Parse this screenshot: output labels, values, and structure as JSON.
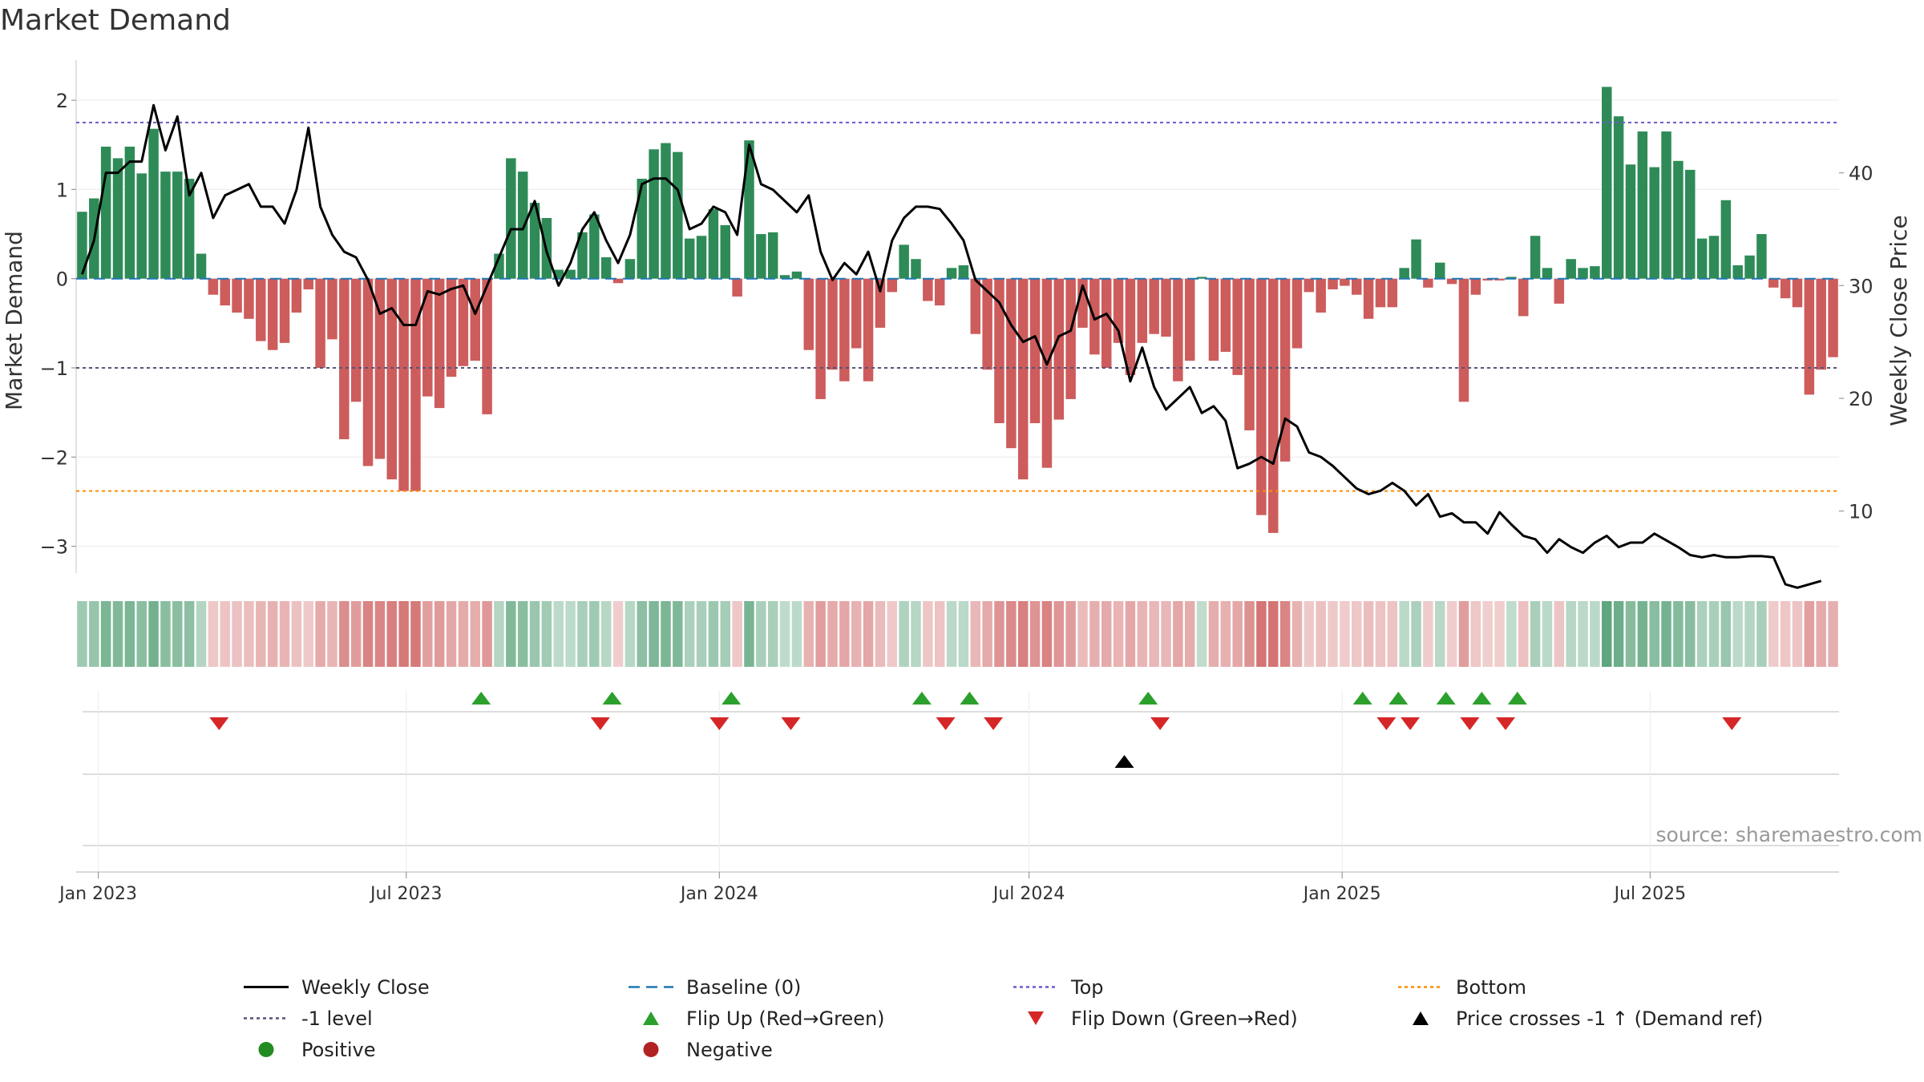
{
  "chart_data": {
    "type": "bar",
    "title": "Market Demand",
    "ylabel": "Market Demand",
    "y2label": "Weekly Close Price",
    "ylim": [
      -3.3,
      2.45
    ],
    "y2lim": [
      4.5,
      50
    ],
    "yticks": [
      2,
      1,
      0,
      -1,
      -2,
      -3
    ],
    "ytick_labels": [
      "2",
      "1",
      "0",
      "−1",
      "−2",
      "−3"
    ],
    "y2ticks": [
      40,
      30,
      20,
      10
    ],
    "y2tick_labels": [
      "40",
      "30",
      "20",
      "10"
    ],
    "x_start": "2022-12-19",
    "x_end": "2025-10-20",
    "xticks": [
      "2023-01-01",
      "2023-07-01",
      "2024-01-01",
      "2024-07-01",
      "2025-01-01",
      "2025-07-01"
    ],
    "xtick_labels": [
      "Jan 2023",
      "Jul 2023",
      "Jan 2024",
      "Jul 2024",
      "Jan 2025",
      "Jul 2025"
    ],
    "reference_lines": {
      "top": 1.75,
      "minus_one": -1,
      "bottom": -2.38,
      "baseline": 0
    },
    "colors": {
      "positive_bar": "#2e8b57",
      "negative_bar": "#cd5c5c",
      "price_line": "#000000",
      "baseline": "#1f77b4",
      "top": "#6a5acd",
      "minus_one": "#555577",
      "bottom": "#ff8c00",
      "flip_up": "#2ca02c",
      "flip_down": "#d62728",
      "cross": "#000000",
      "positive_dot": "#228b22",
      "negative_dot": "#b22222"
    },
    "series": [
      {
        "name": "Market Demand",
        "type": "bar",
        "values": [
          0.75,
          0.9,
          1.48,
          1.35,
          1.48,
          1.18,
          1.68,
          1.2,
          1.2,
          1.12,
          0.28,
          -0.18,
          -0.3,
          -0.38,
          -0.45,
          -0.7,
          -0.8,
          -0.72,
          -0.38,
          -0.12,
          -1.0,
          -0.68,
          -1.8,
          -1.38,
          -2.1,
          -2.02,
          -2.25,
          -2.38,
          -2.38,
          -1.32,
          -1.45,
          -1.1,
          -0.98,
          -0.92,
          -1.52,
          0.28,
          1.35,
          1.2,
          0.85,
          0.68,
          0.1,
          0.1,
          0.52,
          0.72,
          0.24,
          -0.05,
          0.22,
          1.12,
          1.45,
          1.52,
          1.42,
          0.45,
          0.48,
          0.78,
          0.6,
          -0.2,
          1.55,
          0.5,
          0.52,
          0.04,
          0.08,
          -0.8,
          -1.35,
          -1.02,
          -1.15,
          -0.78,
          -1.15,
          -0.55,
          -0.15,
          0.38,
          0.22,
          -0.25,
          -0.3,
          0.12,
          0.15,
          -0.62,
          -1.02,
          -1.62,
          -1.9,
          -2.25,
          -1.62,
          -2.12,
          -1.58,
          -1.35,
          -0.55,
          -0.85,
          -1.0,
          -0.72,
          -1.08,
          -0.72,
          -0.62,
          -0.65,
          -1.15,
          -0.92,
          0.02,
          -0.92,
          -0.82,
          -1.08,
          -1.7,
          -2.65,
          -2.85,
          -2.05,
          -0.78,
          -0.15,
          -0.38,
          -0.12,
          -0.08,
          -0.18,
          -0.45,
          -0.32,
          -0.32,
          0.12,
          0.44,
          -0.1,
          0.18,
          -0.06,
          -1.38,
          -0.18,
          -0.02,
          -0.02,
          0.02,
          -0.42,
          0.48,
          0.12,
          -0.28,
          0.22,
          0.12,
          0.14,
          2.15,
          1.82,
          1.28,
          1.65,
          1.25,
          1.65,
          1.32,
          1.22,
          0.45,
          0.48,
          0.88,
          0.15,
          0.26,
          0.5,
          -0.1,
          -0.22,
          -0.32,
          -1.3,
          -1.02,
          -0.88
        ]
      },
      {
        "name": "Weekly Close",
        "type": "line",
        "values": [
          31,
          34,
          40,
          40,
          41,
          41,
          46,
          42,
          45,
          38,
          40,
          36,
          38,
          38.5,
          39,
          37,
          37,
          35.5,
          38.5,
          44,
          37,
          34.5,
          33,
          32.5,
          30.5,
          27.5,
          28,
          26.5,
          26.5,
          29.5,
          29.2,
          29.7,
          30,
          27.5,
          30,
          32.5,
          35,
          35,
          37.5,
          33,
          30,
          32,
          35,
          36.5,
          34,
          32,
          34.5,
          39,
          39.5,
          39.5,
          38.5,
          35,
          35.5,
          37,
          36.5,
          34.5,
          42.5,
          39,
          38.5,
          37.5,
          36.5,
          38,
          33,
          30.5,
          32,
          31,
          33,
          29.5,
          34,
          36,
          37,
          37,
          36.8,
          35.5,
          34,
          30.5,
          29.5,
          28.5,
          26.5,
          25,
          25.5,
          23,
          25.5,
          26,
          30,
          27,
          27.5,
          26,
          21.5,
          24.5,
          21,
          19,
          20,
          21,
          18.7,
          19.3,
          18,
          13.8,
          14.2,
          14.8,
          14.2,
          18.2,
          17.5,
          15.2,
          14.8,
          14,
          13,
          12,
          11.5,
          11.8,
          12.5,
          11.8,
          10.5,
          11.5,
          9.5,
          9.8,
          9,
          9,
          8,
          9.9,
          8.8,
          7.8,
          7.5,
          6.3,
          7.5,
          6.8,
          6.3,
          7.2,
          7.8,
          6.8,
          7.2,
          7.2,
          8,
          7.4,
          6.8,
          6.1,
          5.9,
          6.1,
          5.9,
          5.9,
          6,
          6,
          5.9,
          3.5,
          3.2,
          3.5,
          3.8
        ]
      }
    ],
    "heat_strip": {
      "name": "Demand color strip",
      "source": "Market Demand"
    },
    "event_rows": [
      {
        "name": "Flip Up (Red→Green)",
        "marker": "triangle-up",
        "color": "#2ca02c",
        "dates": [
          "2023-08-14",
          "2023-10-30",
          "2024-01-08",
          "2024-04-29",
          "2024-05-27",
          "2024-09-09",
          "2025-01-13",
          "2025-02-03",
          "2025-03-03",
          "2025-03-24",
          "2025-04-14"
        ]
      },
      {
        "name": "Flip Down (Green→Red)",
        "marker": "triangle-down",
        "color": "#d62728",
        "dates": [
          "2023-03-13",
          "2023-10-23",
          "2024-01-01",
          "2024-02-12",
          "2024-05-13",
          "2024-06-10",
          "2024-09-16",
          "2025-01-27",
          "2025-02-10",
          "2025-03-17",
          "2025-04-07",
          "2025-08-18"
        ]
      },
      {
        "name": "Price crosses -1 ↑ (Demand ref)",
        "marker": "triangle-up",
        "color": "#000000",
        "dates": [
          "2024-08-26"
        ]
      },
      {
        "name": "Positive / Negative",
        "marker": "circle",
        "color": "#228b22",
        "dates": []
      }
    ],
    "source": "source: sharemaestro.com"
  },
  "legend": [
    {
      "label": "Weekly Close",
      "symbol": "solid-line",
      "color": "#000000"
    },
    {
      "label": "Baseline (0)",
      "symbol": "dashed-line",
      "color": "#1f77b4"
    },
    {
      "label": "Top",
      "symbol": "dotted-line",
      "color": "#6a5acd"
    },
    {
      "label": "Bottom",
      "symbol": "dotted-line",
      "color": "#ff8c00"
    },
    {
      "label": "-1 level",
      "symbol": "dotted-line",
      "color": "#555577"
    },
    {
      "label": "Flip Up (Red→Green)",
      "symbol": "triangle-up",
      "color": "#2ca02c"
    },
    {
      "label": "Flip Down (Green→Red)",
      "symbol": "triangle-down",
      "color": "#d62728"
    },
    {
      "label": "Price crosses -1 ↑ (Demand ref)",
      "symbol": "triangle-up",
      "color": "#000000"
    },
    {
      "label": "Positive",
      "symbol": "circle",
      "color": "#228b22"
    },
    {
      "label": "Negative",
      "symbol": "circle",
      "color": "#b22222"
    }
  ]
}
